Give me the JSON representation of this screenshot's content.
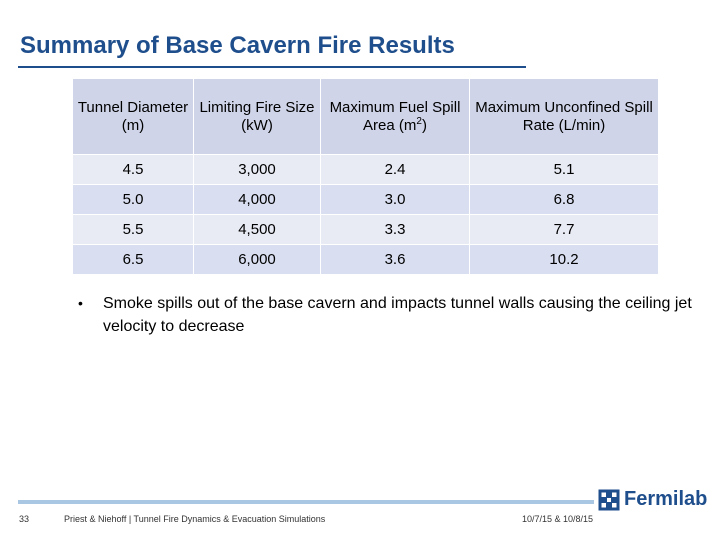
{
  "slide": {
    "title": "Summary of Base Cavern Fire Results",
    "page_number": "33",
    "footer_text": "Priest & Niehoff | Tunnel Fire Dynamics & Evacuation Simulations",
    "footer_date": "10/7/15 & 10/8/15",
    "logo_text": "Fermilab"
  },
  "table": {
    "headers": {
      "h1": "Tunnel Diameter (m)",
      "h2": "Limiting Fire Size (kW)",
      "h3_pre": "Maximum Fuel Spill Area (m",
      "h3_sup": "2",
      "h3_post": ")",
      "h4": "Maximum Unconfined Spill Rate (L/min)"
    },
    "rows": [
      [
        "4.5",
        "3,000",
        "2.4",
        "5.1"
      ],
      [
        "5.0",
        "4,000",
        "3.0",
        "6.8"
      ],
      [
        "5.5",
        "4,500",
        "3.3",
        "7.7"
      ],
      [
        "6.5",
        "6,000",
        "3.6",
        "10.2"
      ]
    ]
  },
  "bullets": {
    "marker": "•",
    "text": "Smoke spills out of the base cavern and impacts tunnel walls causing the ceiling jet velocity to decrease"
  },
  "colors": {
    "title": "#1f4e8c",
    "header_fill": "#cfd4e8",
    "row_fill_light": "#e8ebf4",
    "row_fill_dark": "#d9def0",
    "footer_bar": "#a9c6e3"
  }
}
